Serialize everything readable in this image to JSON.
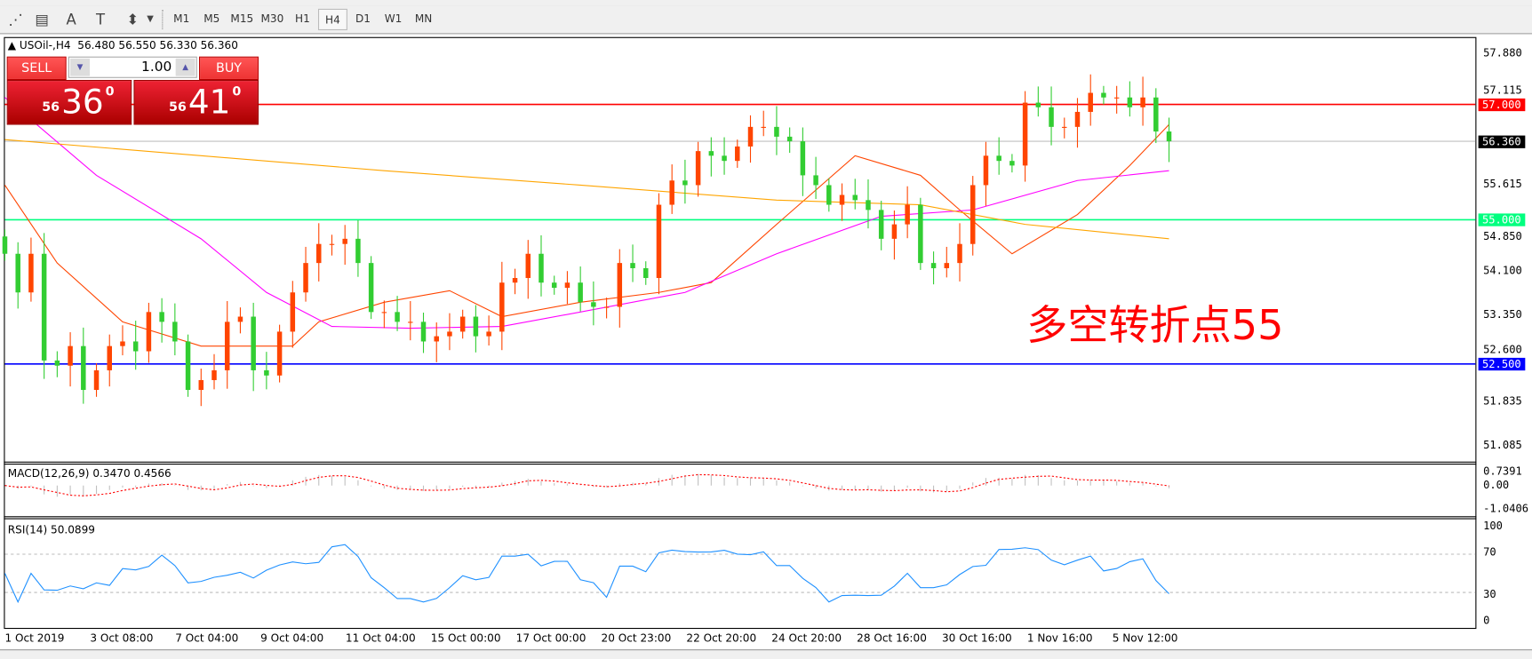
{
  "toolbar": {
    "icons": [
      "fibonacci-expansion-icon",
      "fibonacci-fan-icon",
      "text-icon",
      "text-label-icon",
      "arrows-icon"
    ],
    "icon_glyphs": [
      "⋰",
      "▤",
      "A",
      "T",
      "⬍"
    ],
    "timeframes": [
      "M1",
      "M5",
      "M15",
      "M30",
      "H1",
      "H4",
      "D1",
      "W1",
      "MN"
    ],
    "selected_timeframe": "H4"
  },
  "chart": {
    "header": "USOil-,H4  56.480 56.550 56.330 56.360",
    "symbol": "USOil-",
    "timeframe": "H4",
    "open": 56.48,
    "high": 56.55,
    "low": 56.33,
    "close": 56.36
  },
  "trade_panel": {
    "sell_label": "SELL",
    "buy_label": "BUY",
    "volume": "1.00",
    "sell_price": {
      "prefix": "56",
      "big": "36",
      "sup": "0"
    },
    "buy_price": {
      "prefix": "56",
      "big": "41",
      "sup": "0"
    }
  },
  "annotation": "多空转折点55",
  "price_axis": [
    "57.880",
    "57.115",
    "55.615",
    "54.850",
    "54.100",
    "53.350",
    "52.600",
    "51.835",
    "51.085"
  ],
  "price_lines": [
    {
      "label": "57.000",
      "value": 57.0,
      "color": "#ff0000"
    },
    {
      "label": "56.360",
      "value": 56.36,
      "color": "#000000",
      "line": "#c0c0c0"
    },
    {
      "label": "55.000",
      "value": 55.0,
      "color": "#00ff7f"
    },
    {
      "label": "52.500",
      "value": 52.5,
      "color": "#0000ff"
    }
  ],
  "macd": {
    "label": "MACD(12,26,9) 0.3470 0.4566",
    "axis": [
      "0.7391",
      "0.00",
      "-1.0406"
    ]
  },
  "rsi": {
    "label": "RSI(14) 50.0899",
    "axis": [
      "100",
      "70",
      "30",
      "0"
    ],
    "levels": [
      70,
      30
    ],
    "color": "#1e90ff"
  },
  "date_axis": [
    "1 Oct 2019",
    "3 Oct 08:00",
    "7 Oct 04:00",
    "9 Oct 04:00",
    "11 Oct 04:00",
    "15 Oct 00:00",
    "17 Oct 00:00",
    "20 Oct 23:00",
    "22 Oct 20:00",
    "24 Oct 20:00",
    "28 Oct 16:00",
    "30 Oct 16:00",
    "1 Nov 16:00",
    "5 Nov 12:00"
  ],
  "chart_data": {
    "type": "candlestick",
    "ylim": [
      50.9,
      58.1
    ],
    "colors": {
      "up": "#ff4500",
      "down": "#32cd32"
    },
    "closes": [
      54.41,
      53.74,
      54.41,
      52.56,
      52.47,
      52.81,
      52.05,
      52.39,
      52.81,
      52.89,
      52.72,
      53.4,
      53.23,
      52.89,
      52.05,
      52.22,
      52.39,
      53.23,
      53.32,
      52.39,
      52.3,
      53.06,
      53.74,
      54.25,
      54.58,
      54.58,
      54.67,
      54.25,
      53.4,
      53.4,
      53.23,
      53.23,
      52.89,
      52.98,
      53.06,
      53.32,
      52.98,
      53.06,
      53.91,
      53.99,
      54.41,
      53.91,
      53.82,
      53.91,
      53.57,
      53.49,
      53.49,
      54.25,
      54.16,
      53.99,
      55.26,
      55.68,
      55.6,
      56.19,
      56.11,
      56.02,
      56.27,
      56.61,
      56.61,
      56.44,
      56.36,
      55.77,
      55.6,
      55.26,
      55.43,
      55.34,
      55.17,
      54.67,
      54.92,
      55.26,
      54.25,
      54.16,
      54.25,
      54.58,
      55.6,
      56.11,
      56.02,
      55.94,
      57.03,
      56.95,
      56.61,
      56.61,
      56.87,
      57.2,
      57.12,
      57.12,
      56.95,
      57.12,
      56.53,
      56.36
    ],
    "moving_averages": [
      {
        "color": "#ff4500",
        "points": [
          [
            0,
            55.6
          ],
          [
            4,
            54.25
          ],
          [
            9,
            53.23
          ],
          [
            15,
            52.81
          ],
          [
            22,
            52.81
          ],
          [
            24,
            53.23
          ],
          [
            29,
            53.57
          ],
          [
            34,
            53.77
          ],
          [
            38,
            53.32
          ],
          [
            44,
            53.57
          ],
          [
            50,
            53.74
          ],
          [
            54,
            53.91
          ],
          [
            59,
            54.92
          ],
          [
            65,
            56.11
          ],
          [
            70,
            55.77
          ],
          [
            73,
            55.17
          ],
          [
            77,
            54.41
          ],
          [
            82,
            55.09
          ],
          [
            86,
            55.94
          ],
          [
            89,
            56.65
          ]
        ]
      },
      {
        "color": "#ff00ff",
        "points": [
          [
            0,
            57.12
          ],
          [
            7,
            55.77
          ],
          [
            15,
            54.67
          ],
          [
            20,
            53.74
          ],
          [
            25,
            53.15
          ],
          [
            31,
            53.12
          ],
          [
            38,
            53.15
          ],
          [
            44,
            53.4
          ],
          [
            52,
            53.74
          ],
          [
            59,
            54.41
          ],
          [
            67,
            55.06
          ],
          [
            74,
            55.17
          ],
          [
            82,
            55.68
          ],
          [
            89,
            55.85
          ]
        ]
      },
      {
        "color": "#ffa500",
        "points": [
          [
            0,
            56.39
          ],
          [
            15,
            56.11
          ],
          [
            29,
            55.85
          ],
          [
            44,
            55.6
          ],
          [
            59,
            55.34
          ],
          [
            70,
            55.26
          ],
          [
            78,
            54.92
          ],
          [
            89,
            54.67
          ]
        ]
      }
    ]
  }
}
